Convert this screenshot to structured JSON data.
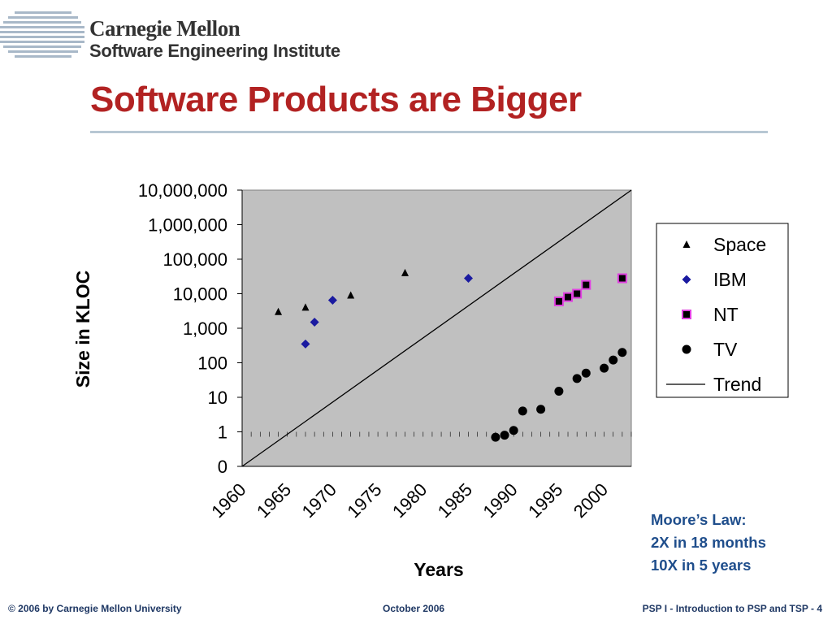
{
  "header": {
    "org_line1": "Carnegie Mellon",
    "org_line2": "Software Engineering Institute"
  },
  "slide": {
    "title": "Software Products are Bigger"
  },
  "note": {
    "lines": [
      "Moore’s Law:",
      "2X in 18 months",
      "10X in 5 years"
    ]
  },
  "footer": {
    "left": "© 2006 by Carnegie Mellon University",
    "center": "October 2006",
    "right": "PSP I - Introduction to PSP and TSP - 4"
  },
  "colors": {
    "title": "#b22222",
    "plot_background": "#c0c0c0",
    "ibm": "#1a1aa0",
    "nt_border": "#e040e0",
    "note_text": "#1f4e8c"
  },
  "chart_data": {
    "type": "scatter",
    "xlabel": "Years",
    "ylabel": "Size in KLOC",
    "x_ticks": [
      "1960",
      "1965",
      "1970",
      "1975",
      "1980",
      "1985",
      "1990",
      "1995",
      "2000"
    ],
    "y_ticks": [
      "0",
      "1",
      "10",
      "100",
      "1,000",
      "10,000",
      "100,000",
      "1,000,000",
      "10,000,000"
    ],
    "y_scale": "log",
    "xlim": [
      1960,
      2003
    ],
    "legend_position": "right",
    "grid": false,
    "series": [
      {
        "name": "Space",
        "marker": "triangle",
        "points": [
          [
            1964,
            3000
          ],
          [
            1967,
            4000
          ],
          [
            1972,
            9000
          ],
          [
            1978,
            40000
          ]
        ]
      },
      {
        "name": "IBM",
        "marker": "diamond",
        "points": [
          [
            1967,
            350
          ],
          [
            1968,
            1500
          ],
          [
            1970,
            6500
          ],
          [
            1985,
            28000
          ]
        ]
      },
      {
        "name": "NT",
        "marker": "square",
        "points": [
          [
            1995,
            6000
          ],
          [
            1996,
            8000
          ],
          [
            1997,
            10000
          ],
          [
            1998,
            18000
          ],
          [
            2002,
            28000
          ]
        ]
      },
      {
        "name": "TV",
        "marker": "circle",
        "points": [
          [
            1988,
            0.7
          ],
          [
            1989,
            0.8
          ],
          [
            1990,
            1.1
          ],
          [
            1991,
            4
          ],
          [
            1993,
            4.5
          ],
          [
            1995,
            15
          ],
          [
            1997,
            35
          ],
          [
            1998,
            50
          ],
          [
            2000,
            70
          ],
          [
            2001,
            120
          ],
          [
            2002,
            200
          ]
        ]
      },
      {
        "name": "Trend",
        "marker": "line",
        "points": [
          [
            1960,
            0.1
          ],
          [
            2003,
            10000000
          ]
        ]
      }
    ]
  }
}
